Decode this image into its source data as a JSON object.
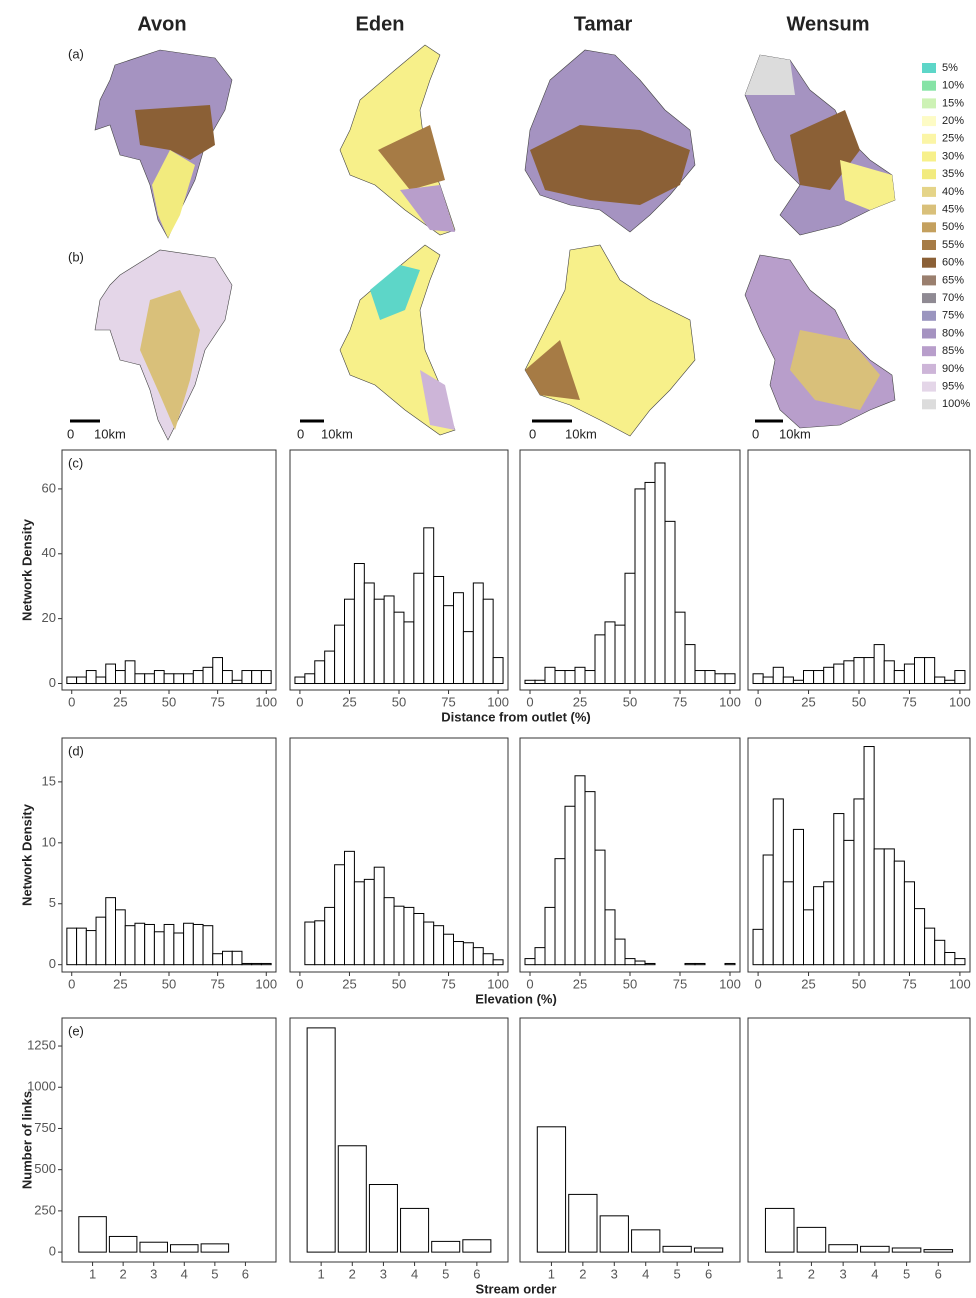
{
  "maps": {
    "columns": [
      "Avon",
      "Eden",
      "Tamar",
      "Wensum"
    ],
    "panels": [
      "(a)",
      "(b)"
    ],
    "scale": {
      "start": "0",
      "end": "10km"
    },
    "legend": [
      {
        "label": "5%",
        "color": "#5dd6c8"
      },
      {
        "label": "10%",
        "color": "#86e3a6"
      },
      {
        "label": "15%",
        "color": "#cdf2b5"
      },
      {
        "label": "20%",
        "color": "#fdfbc5"
      },
      {
        "label": "25%",
        "color": "#fbf5a6"
      },
      {
        "label": "30%",
        "color": "#f7f08a"
      },
      {
        "label": "35%",
        "color": "#f2eb7e"
      },
      {
        "label": "40%",
        "color": "#e5d488"
      },
      {
        "label": "45%",
        "color": "#d9c07a"
      },
      {
        "label": "50%",
        "color": "#c4a05e"
      },
      {
        "label": "55%",
        "color": "#a67b45"
      },
      {
        "label": "60%",
        "color": "#8b6036"
      },
      {
        "label": "65%",
        "color": "#9a7f6e"
      },
      {
        "label": "70%",
        "color": "#8f8a93"
      },
      {
        "label": "75%",
        "color": "#9a95bf"
      },
      {
        "label": "80%",
        "color": "#a593c1"
      },
      {
        "label": "85%",
        "color": "#b89ecb"
      },
      {
        "label": "90%",
        "color": "#cdb5d8"
      },
      {
        "label": "95%",
        "color": "#e4d6e8"
      },
      {
        "label": "100%",
        "color": "#dcdcdc"
      }
    ]
  },
  "chart_data": [
    {
      "type": "histogram",
      "panel_label": "(c)",
      "ylabel": "Network Density",
      "xlabel": "Distance from outlet (%)",
      "bins": [
        -2.5,
        2.5,
        7.5,
        12.5,
        17.5,
        22.5,
        27.5,
        32.5,
        37.5,
        42.5,
        47.5,
        52.5,
        57.5,
        62.5,
        67.5,
        72.5,
        77.5,
        82.5,
        87.5,
        92.5,
        97.5,
        102.5
      ],
      "values": [
        2,
        2,
        4,
        2,
        6,
        4,
        7,
        3,
        3,
        4,
        3,
        3,
        3,
        4,
        5,
        8,
        4,
        1,
        4,
        4,
        4
      ],
      "xlim": [
        -5,
        105
      ],
      "ylim": [
        -2,
        72
      ],
      "xticks": [
        0,
        25,
        50,
        75,
        100
      ],
      "yticks": [
        0,
        20,
        40,
        60
      ]
    },
    {
      "type": "histogram",
      "bins": [
        -2.5,
        2.5,
        7.5,
        12.5,
        17.5,
        22.5,
        27.5,
        32.5,
        37.5,
        42.5,
        47.5,
        52.5,
        57.5,
        62.5,
        67.5,
        72.5,
        77.5,
        82.5,
        87.5,
        92.5,
        97.5,
        102.5
      ],
      "values": [
        2,
        3,
        7,
        10,
        18,
        26,
        37,
        31,
        26,
        27,
        22,
        19,
        34,
        48,
        33,
        24,
        28,
        16,
        31,
        26,
        8
      ],
      "xlim": [
        -5,
        105
      ],
      "ylim": [
        -2,
        72
      ],
      "xticks": [
        0,
        25,
        50,
        75,
        100
      ]
    },
    {
      "type": "histogram",
      "bins": [
        -2.5,
        2.5,
        7.5,
        12.5,
        17.5,
        22.5,
        27.5,
        32.5,
        37.5,
        42.5,
        47.5,
        52.5,
        57.5,
        62.5,
        67.5,
        72.5,
        77.5,
        82.5,
        87.5,
        92.5,
        97.5,
        102.5
      ],
      "values": [
        1,
        1,
        5,
        4,
        4,
        5,
        4,
        15,
        19,
        18,
        34,
        60,
        62,
        68,
        50,
        22,
        12,
        4,
        4,
        3,
        3
      ],
      "xlim": [
        -5,
        105
      ],
      "ylim": [
        -2,
        72
      ],
      "xticks": [
        0,
        25,
        50,
        75,
        100
      ]
    },
    {
      "type": "histogram",
      "bins": [
        -2.5,
        2.5,
        7.5,
        12.5,
        17.5,
        22.5,
        27.5,
        32.5,
        37.5,
        42.5,
        47.5,
        52.5,
        57.5,
        62.5,
        67.5,
        72.5,
        77.5,
        82.5,
        87.5,
        92.5,
        97.5,
        102.5
      ],
      "values": [
        3,
        2,
        5,
        2,
        1,
        4,
        4,
        5,
        6,
        7,
        8,
        8,
        12,
        7,
        4,
        6,
        8,
        8,
        2,
        1,
        4
      ],
      "xlim": [
        -5,
        105
      ],
      "ylim": [
        -2,
        72
      ],
      "xticks": [
        0,
        25,
        50,
        75,
        100
      ]
    },
    {
      "type": "histogram",
      "panel_label": "(d)",
      "ylabel": "Network Density",
      "xlabel": "Elevation (%)",
      "bins": [
        -2.5,
        2.5,
        7.5,
        12.5,
        17.5,
        22.5,
        27.5,
        32.5,
        37.5,
        42.5,
        47.5,
        52.5,
        57.5,
        62.5,
        67.5,
        72.5,
        77.5,
        82.5,
        87.5,
        92.5,
        97.5,
        102.5
      ],
      "values": [
        3,
        3,
        2.8,
        3.9,
        5.5,
        4.5,
        3.2,
        3.4,
        3.3,
        2.7,
        3.3,
        2.6,
        3.4,
        3.3,
        3.2,
        0.9,
        1.1,
        1.1,
        0.1,
        0.1,
        0.1
      ],
      "xlim": [
        -5,
        105
      ],
      "ylim": [
        -0.6,
        18.6
      ],
      "xticks": [
        0,
        25,
        50,
        75,
        100
      ],
      "yticks": [
        0,
        5,
        10,
        15
      ]
    },
    {
      "type": "histogram",
      "bins": [
        -2.5,
        2.5,
        7.5,
        12.5,
        17.5,
        22.5,
        27.5,
        32.5,
        37.5,
        42.5,
        47.5,
        52.5,
        57.5,
        62.5,
        67.5,
        72.5,
        77.5,
        82.5,
        87.5,
        92.5,
        97.5,
        102.5
      ],
      "values": [
        0,
        3.5,
        3.6,
        4.7,
        8.2,
        9.3,
        6.8,
        7,
        8,
        5.5,
        4.8,
        4.7,
        4.2,
        3.5,
        3.2,
        2.5,
        1.9,
        1.8,
        1.4,
        0.9,
        0.4
      ],
      "xlim": [
        -5,
        105
      ],
      "ylim": [
        -0.6,
        18.6
      ],
      "xticks": [
        0,
        25,
        50,
        75,
        100
      ]
    },
    {
      "type": "histogram",
      "bins": [
        -2.5,
        2.5,
        7.5,
        12.5,
        17.5,
        22.5,
        27.5,
        32.5,
        37.5,
        42.5,
        47.5,
        52.5,
        57.5,
        62.5,
        67.5,
        72.5,
        77.5,
        82.5,
        87.5,
        92.5,
        97.5,
        102.5
      ],
      "values": [
        0.5,
        1.4,
        4.7,
        8.7,
        13,
        15.5,
        14.2,
        9.4,
        4.5,
        2.1,
        0.5,
        0.3,
        0.1,
        0,
        0,
        0,
        0.1,
        0.1,
        0,
        0,
        0.1
      ],
      "xlim": [
        -5,
        105
      ],
      "ylim": [
        -0.6,
        18.6
      ],
      "xticks": [
        0,
        25,
        50,
        75,
        100
      ]
    },
    {
      "type": "histogram",
      "bins": [
        -2.5,
        2.5,
        7.5,
        12.5,
        17.5,
        22.5,
        27.5,
        32.5,
        37.5,
        42.5,
        47.5,
        52.5,
        57.5,
        62.5,
        67.5,
        72.5,
        77.5,
        82.5,
        87.5,
        92.5,
        97.5,
        102.5
      ],
      "values": [
        2.9,
        9,
        13.6,
        6.8,
        11.1,
        4.5,
        6.4,
        6.8,
        12.4,
        10.2,
        13.6,
        17.9,
        9.5,
        9.5,
        8.5,
        6.8,
        4.6,
        3,
        2,
        1,
        0.5
      ],
      "xlim": [
        -5,
        105
      ],
      "ylim": [
        -0.6,
        18.6
      ],
      "xticks": [
        0,
        25,
        50,
        75,
        100
      ]
    },
    {
      "type": "bar",
      "panel_label": "(e)",
      "ylabel": "Number of links",
      "xlabel": "Stream order",
      "categories": [
        "1",
        "2",
        "3",
        "4",
        "5",
        "6"
      ],
      "values": [
        215,
        95,
        60,
        45,
        50,
        0
      ],
      "ylim": [
        -60,
        1420
      ],
      "yticks": [
        0,
        250,
        500,
        750,
        1000,
        1250
      ]
    },
    {
      "type": "bar",
      "categories": [
        "1",
        "2",
        "3",
        "4",
        "5",
        "6"
      ],
      "values": [
        1360,
        645,
        410,
        265,
        65,
        75
      ],
      "ylim": [
        -60,
        1420
      ]
    },
    {
      "type": "bar",
      "categories": [
        "1",
        "2",
        "3",
        "4",
        "5",
        "6"
      ],
      "values": [
        760,
        350,
        220,
        135,
        35,
        25
      ],
      "ylim": [
        -60,
        1420
      ]
    },
    {
      "type": "bar",
      "categories": [
        "1",
        "2",
        "3",
        "4",
        "5",
        "6"
      ],
      "values": [
        265,
        150,
        45,
        35,
        25,
        15
      ],
      "ylim": [
        -60,
        1420
      ]
    }
  ]
}
